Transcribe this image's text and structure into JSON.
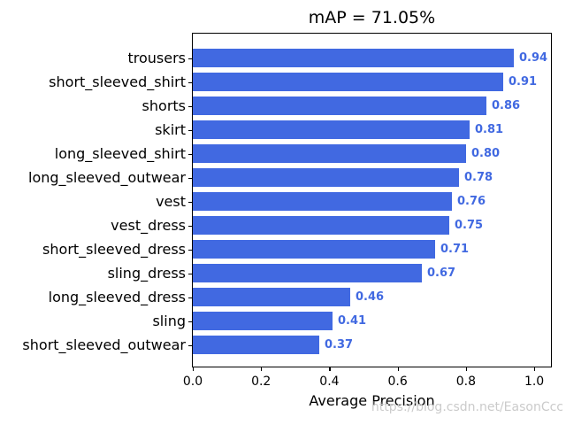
{
  "figure": {
    "title": "mAP = 71.05%",
    "watermark": "https://blog.csdn.net/EasonCcc"
  },
  "chart_data": {
    "type": "bar",
    "orientation": "horizontal",
    "title": "mAP = 71.05%",
    "xlabel": "Average Precision",
    "categories": [
      "trousers",
      "short_sleeved_shirt",
      "shorts",
      "skirt",
      "long_sleeved_shirt",
      "long_sleeved_outwear",
      "vest",
      "vest_dress",
      "short_sleeved_dress",
      "sling_dress",
      "long_sleeved_dress",
      "sling",
      "short_sleeved_outwear"
    ],
    "values": [
      0.94,
      0.91,
      0.86,
      0.81,
      0.8,
      0.78,
      0.76,
      0.75,
      0.71,
      0.67,
      0.46,
      0.41,
      0.37
    ],
    "value_labels": [
      "0.94",
      "0.91",
      "0.86",
      "0.81",
      "0.80",
      "0.78",
      "0.76",
      "0.75",
      "0.71",
      "0.67",
      "0.46",
      "0.41",
      "0.37"
    ],
    "xtick_labels": [
      "0.0",
      "0.2",
      "0.4",
      "0.6",
      "0.8",
      "1.0"
    ],
    "xtick_values": [
      0.0,
      0.2,
      0.4,
      0.6,
      0.8,
      1.0
    ],
    "xlim": [
      0.0,
      1.049
    ],
    "grid": false,
    "legend": null,
    "colors": {
      "bar": "#4169E1",
      "value_label": "#4169E1",
      "axis": "#000000",
      "watermark": "#cbcbcb"
    }
  }
}
